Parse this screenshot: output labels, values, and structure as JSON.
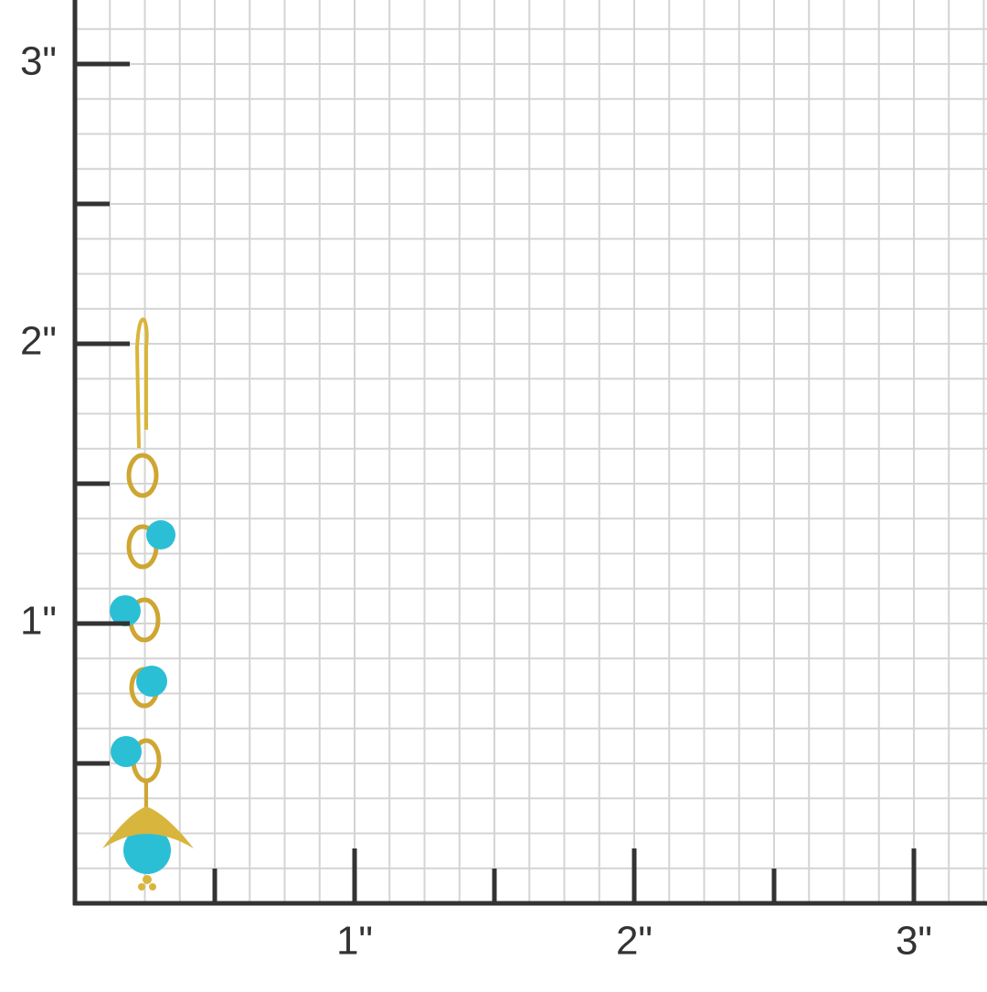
{
  "x_axis": {
    "labels": [
      "1\"",
      "2\"",
      "3\""
    ]
  },
  "y_axis": {
    "labels": [
      "1\"",
      "2\"",
      "3\""
    ]
  }
}
